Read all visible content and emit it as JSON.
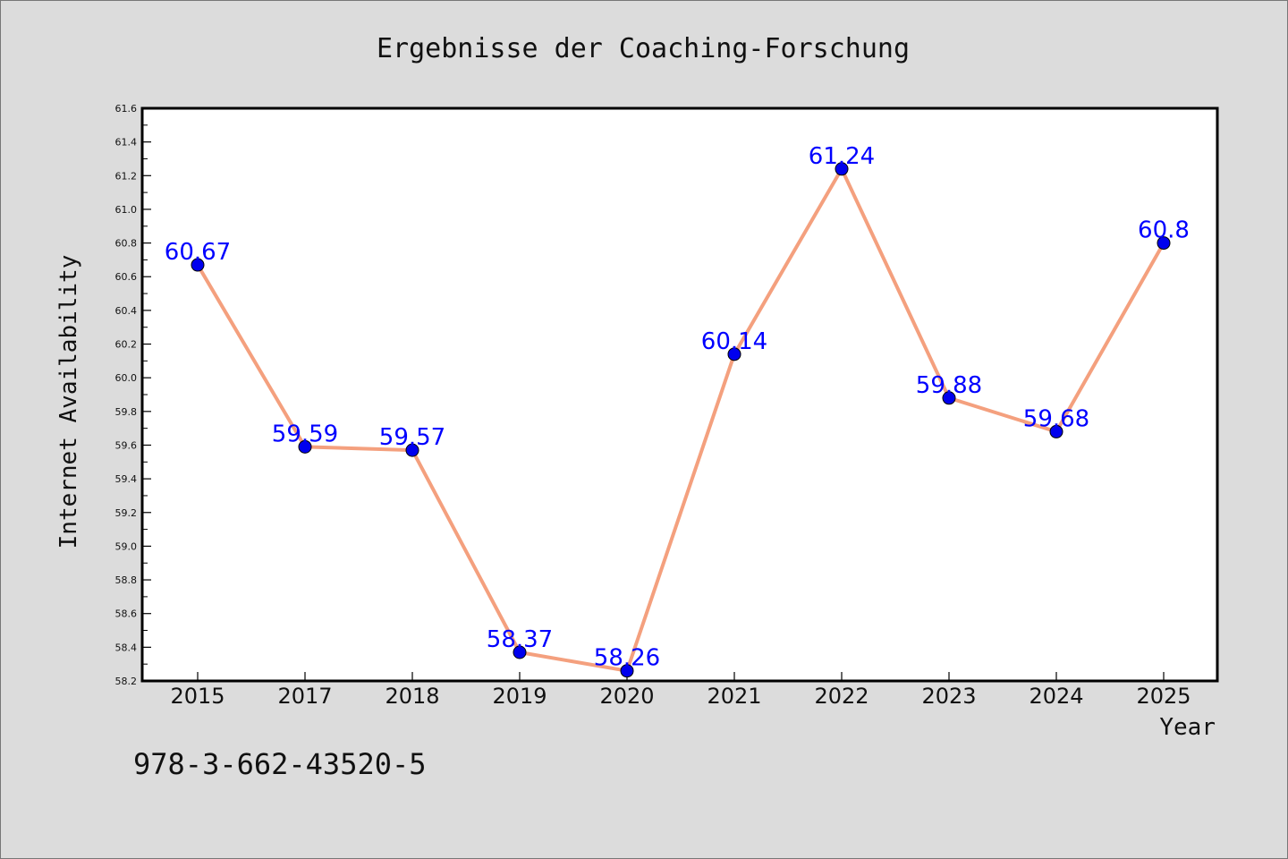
{
  "chart_data": {
    "type": "line",
    "title": "Ergebnisse der Coaching-Forschung",
    "xlabel": "Year",
    "ylabel": "Internet Availability",
    "categories": [
      "2015",
      "2017",
      "2018",
      "2019",
      "2020",
      "2021",
      "2022",
      "2023",
      "2024",
      "2025"
    ],
    "series": [
      {
        "values": [
          60.67,
          59.59,
          59.57,
          58.37,
          58.26,
          60.14,
          61.24,
          59.88,
          59.68,
          60.8
        ],
        "data_labels": [
          "60.67",
          "59.59",
          "59.57",
          "58.37",
          "58.26",
          "60.14",
          "61.24",
          "59.88",
          "59.68",
          "60.8"
        ],
        "line_color": "#f4a07e",
        "marker_color": "#0000ee"
      }
    ],
    "ylim": [
      58.2,
      61.6
    ],
    "yticks": [
      "58.2",
      "58.4",
      "58.6",
      "58.8",
      "59.0",
      "59.2",
      "59.4",
      "59.6",
      "59.8",
      "60.0",
      "60.2",
      "60.4",
      "60.6",
      "60.8",
      "61.0",
      "61.2",
      "61.4",
      "61.6"
    ],
    "grid": false,
    "data_label_color": "#0000ff"
  },
  "footer": {
    "isbn": "978-3-662-43520-5"
  }
}
